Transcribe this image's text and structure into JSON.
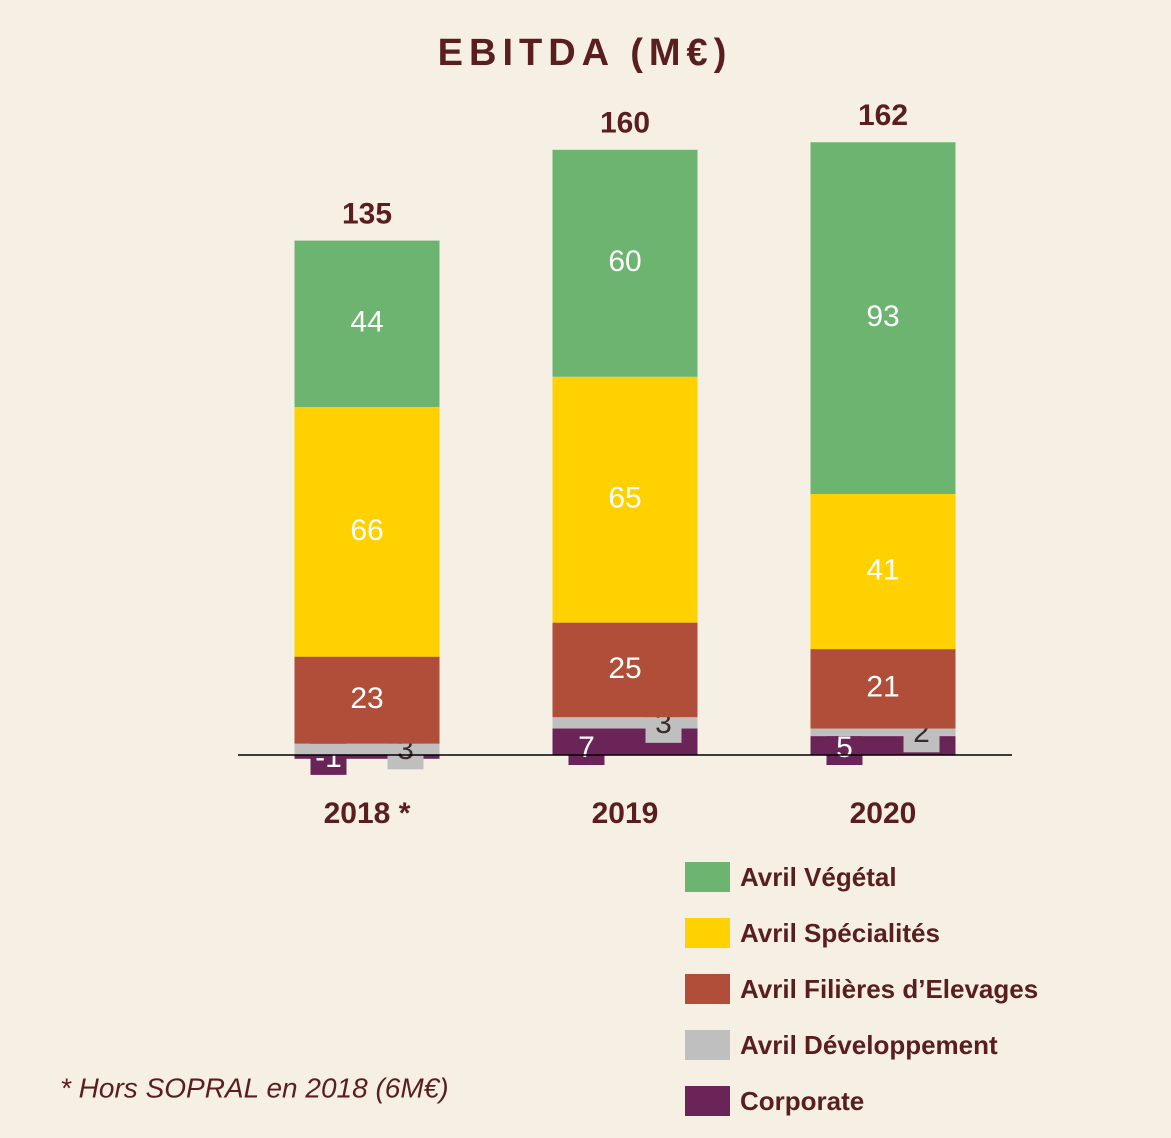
{
  "chart_data": {
    "type": "stacked_bar",
    "title": "EBITDA (M€)",
    "categories": [
      "2018 *",
      "2019",
      "2020"
    ],
    "series": [
      {
        "name": "Corporate",
        "color": "#6a2457",
        "values": [
          -1,
          7,
          5
        ]
      },
      {
        "name": "Avril Développement",
        "color": "#bfbfbf",
        "values": [
          3,
          3,
          2
        ]
      },
      {
        "name": "Avril Filières d’Elevages",
        "color": "#b04e3a",
        "values": [
          23,
          25,
          21
        ]
      },
      {
        "name": "Avril Spécialités",
        "color": "#ffd100",
        "values": [
          66,
          65,
          41
        ]
      },
      {
        "name": "Avril Végétal",
        "color": "#6db471",
        "values": [
          44,
          60,
          93
        ]
      }
    ],
    "totals": [
      135,
      160,
      162
    ],
    "ylim": [
      0,
      170
    ],
    "annotation": "* Hors SOPRAL en 2018 (6M€)"
  }
}
